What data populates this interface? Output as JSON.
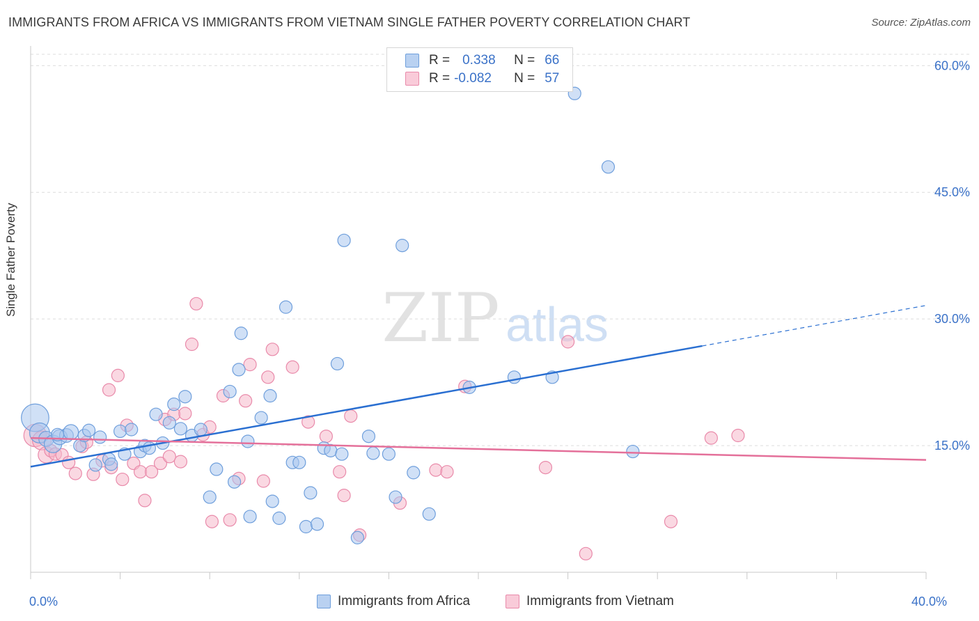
{
  "title": "IMMIGRANTS FROM AFRICA VS IMMIGRANTS FROM VIETNAM SINGLE FATHER POVERTY CORRELATION CHART",
  "source": "Source: ZipAtlas.com",
  "watermark": {
    "zip": "ZIP",
    "atlas": "atlas"
  },
  "legend": {
    "rows": [
      {
        "r_label": "R =",
        "r_value": "0.338",
        "n_label": "N =",
        "n_value": "66"
      },
      {
        "r_label": "R =",
        "r_value": "-0.082",
        "n_label": "N =",
        "n_value": "57"
      }
    ]
  },
  "bottom_legend": {
    "africa": "Immigrants from Africa",
    "vietnam": "Immigrants from Vietnam"
  },
  "colors": {
    "africa_fill": "#a9c6ee",
    "africa_stroke": "#6f9fdc",
    "africa_line": "#2a6fd1",
    "vietnam_fill": "#f5b8cb",
    "vietnam_stroke": "#e98aaa",
    "vietnam_line": "#e4709a",
    "axis_label": "#3b72c8",
    "grid": "#dcdcdc"
  },
  "chart_data": {
    "type": "scatter",
    "ylabel": "Single Father Poverty",
    "xlim": [
      0,
      40
    ],
    "ylim": [
      0,
      62
    ],
    "x_tick_labels": [
      {
        "value": 0,
        "label": "0.0%"
      },
      {
        "value": 40,
        "label": "40.0%"
      }
    ],
    "y_tick_labels": [
      {
        "value": 15,
        "label": "15.0%"
      },
      {
        "value": 30,
        "label": "30.0%"
      },
      {
        "value": 45,
        "label": "45.0%"
      },
      {
        "value": 60,
        "label": "60.0%"
      }
    ],
    "grid": true,
    "series": [
      {
        "name": "Immigrants from Africa",
        "R": 0.338,
        "N": 66,
        "trend": {
          "x_solid": [
            0,
            30
          ],
          "y_solid": [
            12.5,
            26.8
          ],
          "x_dashed_end": 40,
          "y_dashed_end": 31.6
        },
        "points": [
          [
            0.2,
            18.3
          ],
          [
            0.4,
            16.5
          ],
          [
            0.7,
            15.8
          ],
          [
            1.0,
            15.2
          ],
          [
            1.3,
            16.0
          ],
          [
            1.6,
            16.2
          ],
          [
            1.8,
            16.6
          ],
          [
            2.2,
            15.0
          ],
          [
            2.4,
            16.2
          ],
          [
            2.6,
            16.8
          ],
          [
            3.1,
            16.0
          ],
          [
            2.9,
            12.7
          ],
          [
            3.5,
            13.4
          ],
          [
            3.6,
            12.8
          ],
          [
            4.0,
            16.7
          ],
          [
            4.2,
            14.0
          ],
          [
            4.5,
            16.9
          ],
          [
            4.9,
            14.3
          ],
          [
            5.1,
            15.0
          ],
          [
            5.3,
            14.7
          ],
          [
            5.6,
            18.7
          ],
          [
            5.9,
            15.3
          ],
          [
            6.2,
            17.7
          ],
          [
            6.4,
            19.9
          ],
          [
            6.7,
            17.0
          ],
          [
            6.9,
            20.8
          ],
          [
            7.2,
            16.2
          ],
          [
            7.6,
            16.9
          ],
          [
            8.3,
            12.2
          ],
          [
            8.0,
            8.9
          ],
          [
            8.9,
            21.4
          ],
          [
            9.1,
            10.7
          ],
          [
            9.4,
            28.3
          ],
          [
            9.3,
            24.0
          ],
          [
            9.7,
            15.5
          ],
          [
            9.8,
            6.6
          ],
          [
            10.3,
            18.3
          ],
          [
            10.7,
            20.9
          ],
          [
            10.8,
            8.4
          ],
          [
            11.1,
            6.4
          ],
          [
            11.4,
            31.4
          ],
          [
            11.7,
            13.0
          ],
          [
            12.0,
            13.0
          ],
          [
            12.3,
            5.4
          ],
          [
            12.5,
            9.4
          ],
          [
            12.8,
            5.7
          ],
          [
            13.1,
            14.7
          ],
          [
            13.4,
            14.4
          ],
          [
            13.7,
            24.7
          ],
          [
            13.9,
            14.0
          ],
          [
            14.0,
            39.3
          ],
          [
            14.6,
            4.1
          ],
          [
            15.1,
            16.1
          ],
          [
            15.3,
            14.1
          ],
          [
            16.0,
            14.0
          ],
          [
            16.3,
            8.9
          ],
          [
            16.6,
            38.7
          ],
          [
            17.1,
            11.8
          ],
          [
            17.8,
            6.9
          ],
          [
            19.6,
            21.9
          ],
          [
            21.6,
            23.1
          ],
          [
            23.3,
            23.1
          ],
          [
            24.3,
            56.7
          ],
          [
            25.8,
            48.0
          ],
          [
            26.9,
            14.3
          ],
          [
            1.2,
            16.3
          ]
        ],
        "sizes": [
          2.2,
          1.6,
          1.2,
          1.4,
          1.2,
          1.1,
          1.2,
          1,
          1,
          1,
          1,
          1,
          1,
          1,
          1,
          1,
          1,
          1,
          1,
          1,
          1,
          1,
          1,
          1,
          1,
          1,
          1,
          1,
          1,
          1,
          1,
          1,
          1,
          1,
          1,
          1,
          1,
          1,
          1,
          1,
          1,
          1,
          1,
          1,
          1,
          1,
          1,
          1,
          1,
          1,
          1,
          1,
          1,
          1,
          1,
          1,
          1,
          1,
          1,
          1,
          1,
          1,
          1,
          1,
          1,
          1
        ]
      },
      {
        "name": "Immigrants from Vietnam",
        "R": -0.082,
        "N": 57,
        "trend": {
          "x_solid": [
            0,
            40
          ],
          "y_solid": [
            15.9,
            13.3
          ]
        },
        "points": [
          [
            0.2,
            16.2
          ],
          [
            0.5,
            15.6
          ],
          [
            0.7,
            13.9
          ],
          [
            0.9,
            14.4
          ],
          [
            1.1,
            14.0
          ],
          [
            1.4,
            13.9
          ],
          [
            1.7,
            13.0
          ],
          [
            2.0,
            11.7
          ],
          [
            2.3,
            14.9
          ],
          [
            2.5,
            15.4
          ],
          [
            2.8,
            11.6
          ],
          [
            3.2,
            13.2
          ],
          [
            3.5,
            21.6
          ],
          [
            3.6,
            12.4
          ],
          [
            3.9,
            23.3
          ],
          [
            4.1,
            11.0
          ],
          [
            4.3,
            17.4
          ],
          [
            4.6,
            12.9
          ],
          [
            4.9,
            11.9
          ],
          [
            5.1,
            8.5
          ],
          [
            5.4,
            11.9
          ],
          [
            5.8,
            12.9
          ],
          [
            6.0,
            18.1
          ],
          [
            6.2,
            13.7
          ],
          [
            6.4,
            18.7
          ],
          [
            6.7,
            13.1
          ],
          [
            6.9,
            18.8
          ],
          [
            7.2,
            27.0
          ],
          [
            7.4,
            31.8
          ],
          [
            7.7,
            16.3
          ],
          [
            8.0,
            17.2
          ],
          [
            8.1,
            6.0
          ],
          [
            8.6,
            20.9
          ],
          [
            8.9,
            6.2
          ],
          [
            9.3,
            11.1
          ],
          [
            9.6,
            20.3
          ],
          [
            9.8,
            24.6
          ],
          [
            10.4,
            10.8
          ],
          [
            10.6,
            23.1
          ],
          [
            10.8,
            26.4
          ],
          [
            11.7,
            24.3
          ],
          [
            12.4,
            17.8
          ],
          [
            13.2,
            16.1
          ],
          [
            13.8,
            11.9
          ],
          [
            14.0,
            9.1
          ],
          [
            14.3,
            18.5
          ],
          [
            14.7,
            4.4
          ],
          [
            16.5,
            8.2
          ],
          [
            18.1,
            12.1
          ],
          [
            18.6,
            11.9
          ],
          [
            19.4,
            22.0
          ],
          [
            23.0,
            12.4
          ],
          [
            24.0,
            27.3
          ],
          [
            24.8,
            2.2
          ],
          [
            28.6,
            6.0
          ],
          [
            30.4,
            15.9
          ],
          [
            31.6,
            16.2
          ]
        ],
        "sizes": [
          1.8,
          1.5,
          1.3,
          1,
          1,
          1,
          1,
          1,
          1,
          1,
          1,
          1,
          1,
          1,
          1,
          1,
          1,
          1,
          1,
          1,
          1,
          1,
          1,
          1,
          1,
          1,
          1,
          1,
          1,
          1,
          1,
          1,
          1,
          1,
          1,
          1,
          1,
          1,
          1,
          1,
          1,
          1,
          1,
          1,
          1,
          1,
          1,
          1,
          1,
          1,
          1,
          1,
          1,
          1,
          1,
          1,
          1
        ]
      }
    ]
  }
}
